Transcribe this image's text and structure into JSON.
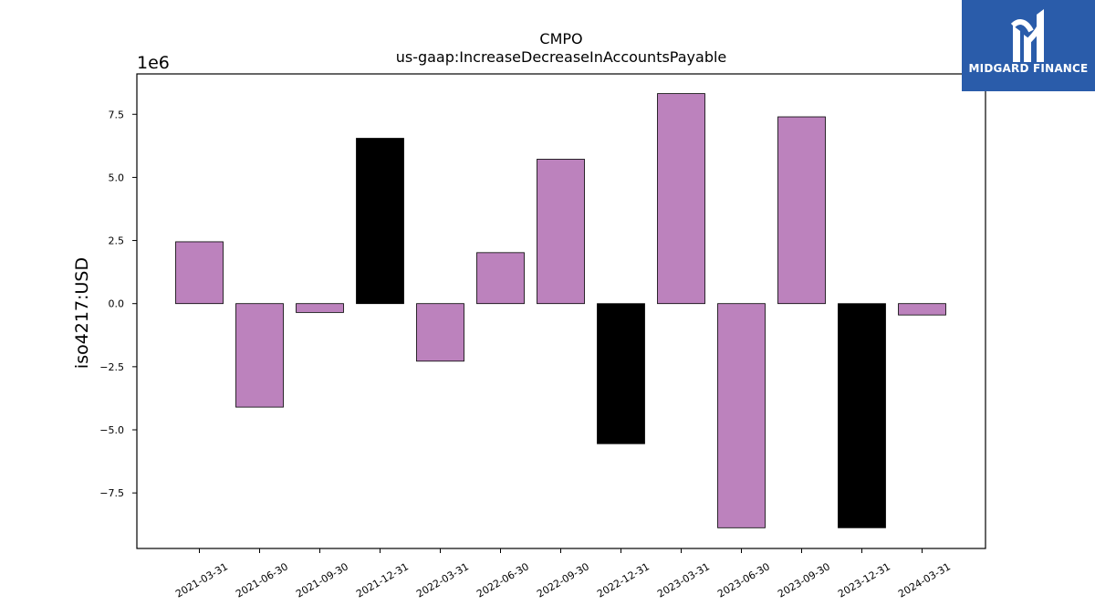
{
  "chart_data": {
    "type": "bar",
    "title": "CMPO",
    "subtitle": "us-gaap:IncreaseDecreaseInAccountsPayable",
    "ylabel": "iso4217:USD",
    "xlabel": "",
    "y_offset_label": "1e6",
    "ylim": [
      -9700000,
      9100000
    ],
    "yticks": [
      -7.5,
      -5.0,
      -2.5,
      0.0,
      2.5,
      5.0,
      7.5
    ],
    "ytick_labels": [
      "−7.5",
      "−5.0",
      "−2.5",
      "0.0",
      "2.5",
      "5.0",
      "7.5"
    ],
    "categories": [
      "2021-03-31",
      "2021-06-30",
      "2021-09-30",
      "2021-12-31",
      "2022-03-31",
      "2022-06-30",
      "2022-09-30",
      "2022-12-31",
      "2023-03-31",
      "2023-06-30",
      "2023-09-30",
      "2023-12-31",
      "2024-03-31"
    ],
    "values": [
      2450000,
      -4100000,
      -350000,
      6550000,
      -2280000,
      2020000,
      5720000,
      -5550000,
      8320000,
      -8880000,
      7400000,
      -8880000,
      -450000
    ],
    "bar_colors": [
      "#bc82bd",
      "#bc82bd",
      "#bc82bd",
      "#000000",
      "#bc82bd",
      "#bc82bd",
      "#bc82bd",
      "#000000",
      "#bc82bd",
      "#bc82bd",
      "#bc82bd",
      "#000000",
      "#bc82bd"
    ],
    "grid": false,
    "legend": "none"
  },
  "logo": {
    "text": "MIDGARD FINANCE",
    "background": "#2a5caa",
    "icon": "midgard-logo-icon"
  }
}
